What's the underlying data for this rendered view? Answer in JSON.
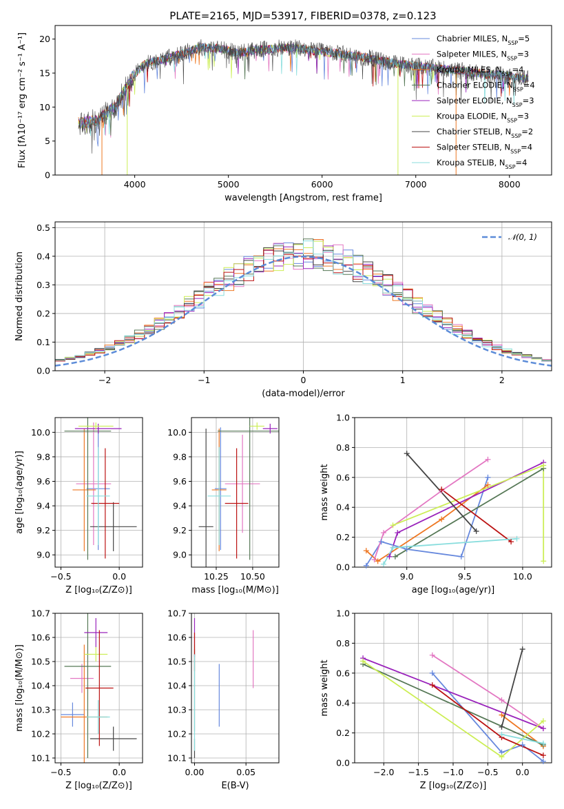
{
  "figure": {
    "title": "PLATE=2165, MJD=53917, FIBERID=0378, z=0.123",
    "colors": [
      "#6688dd",
      "#e377c2",
      "#ee7722",
      "#557755",
      "#9922bb",
      "#ccee55",
      "#444444",
      "#bb1111",
      "#88dddd"
    ]
  },
  "chart_data": [
    {
      "id": "spectrum",
      "type": "line",
      "title": "PLATE=2165, MJD=53917, FIBERID=0378, z=0.123",
      "xlabel": "wavelength [Angstrom, rest frame]",
      "ylabel": "Flux [fλ10⁻¹⁷ erg cm⁻² s⁻¹ A⁻¹]",
      "xlim": [
        3150,
        8450
      ],
      "ylim": [
        0,
        22
      ],
      "xticks": [
        4000,
        5000,
        6000,
        7000,
        8000
      ],
      "yticks": [
        0,
        5,
        10,
        15,
        20
      ],
      "grid": false,
      "legend_position": "top-right",
      "continuum": {
        "x": [
          3400,
          3600,
          3800,
          3950,
          4100,
          4300,
          4500,
          4700,
          4900,
          5100,
          5300,
          5500,
          5700,
          5900,
          6100,
          6300,
          6500,
          6700,
          6900,
          7100,
          7300,
          7500,
          7700,
          7900,
          8200
        ],
        "y": [
          7.6,
          8.0,
          10.2,
          14.0,
          16.3,
          17.0,
          17.8,
          18.8,
          18.6,
          18.0,
          18.4,
          18.6,
          18.7,
          18.3,
          18.0,
          17.6,
          17.2,
          16.6,
          16.2,
          15.9,
          15.6,
          15.3,
          14.9,
          14.7,
          14.2
        ]
      },
      "series": [
        {
          "name": "Chabrier MILES, N_SSP=5"
        },
        {
          "name": "Salpeter MILES, N_SSP=3"
        },
        {
          "name": "Kroupa MILES, N_SSP=4"
        },
        {
          "name": "Chabrier ELODIE, N_SSP=4"
        },
        {
          "name": "Salpeter ELODIE, N_SSP=3"
        },
        {
          "name": "Kroupa ELODIE, N_SSP=3"
        },
        {
          "name": "Chabrier STELIB, N_SSP=2"
        },
        {
          "name": "Salpeter STELIB, N_SSP=4"
        },
        {
          "name": "Kroupa STELIB, N_SSP=4"
        }
      ]
    },
    {
      "id": "residuals",
      "type": "line",
      "xlabel": "(data-model)/error",
      "ylabel": "Normed distribution",
      "xlim": [
        -2.5,
        2.5
      ],
      "ylim": [
        0,
        0.52
      ],
      "xticks": [
        -2,
        -1,
        0,
        1,
        2
      ],
      "yticks": [
        0.0,
        0.1,
        0.2,
        0.3,
        0.4,
        0.5
      ],
      "grid": true,
      "legend_position": "top-right",
      "legend": "𝒩(0, 1)",
      "gaussian": {
        "mean": 0,
        "sigma": 1
      },
      "bin_width": 0.1
    },
    {
      "id": "age_vs_Z",
      "type": "scatter",
      "xlabel": "Z [log₁₀(Z/Z⊙)]",
      "ylabel": "age  [log₁₀(age/yr)]",
      "xlim": [
        -0.55,
        0.2
      ],
      "ylim": [
        8.9,
        10.12
      ],
      "xticks": [
        -0.5,
        0.0
      ],
      "yticks": [
        9.0,
        9.2,
        9.4,
        9.6,
        9.8,
        10.0
      ],
      "grid": true,
      "points": [
        {
          "x": -0.18,
          "y": 9.54,
          "xerr": 0.1,
          "yerr": 0.5
        },
        {
          "x": -0.22,
          "y": 9.58,
          "xerr": 0.15,
          "yerr": 0.5
        },
        {
          "x": -0.3,
          "y": 9.53,
          "xerr": 0.1,
          "yerr": 0.5
        },
        {
          "x": -0.27,
          "y": 10.01,
          "xerr": 0.2,
          "yerr": 1.05
        },
        {
          "x": -0.18,
          "y": 10.03,
          "xerr": 0.2,
          "yerr": 0.04
        },
        {
          "x": -0.2,
          "y": 10.05,
          "xerr": 0.15,
          "yerr": 0.03
        },
        {
          "x": -0.05,
          "y": 9.23,
          "xerr": 0.2,
          "yerr": 0.2
        },
        {
          "x": -0.12,
          "y": 9.42,
          "xerr": 0.12,
          "yerr": 0.45
        },
        {
          "x": -0.18,
          "y": 9.48,
          "xerr": 0.1,
          "yerr": 0.4
        }
      ]
    },
    {
      "id": "age_vs_mass",
      "type": "scatter",
      "xlabel": "mass [log₁₀(M/M⊙)]",
      "ylabel": "",
      "xlim": [
        10.08,
        10.68
      ],
      "ylim": [
        8.9,
        10.12
      ],
      "xticks": [
        10.25,
        10.5
      ],
      "yticks": [
        9.0,
        9.2,
        9.4,
        9.6,
        9.8,
        10.0
      ],
      "grid": true,
      "points": [
        {
          "x": 10.28,
          "y": 9.54,
          "xerr": 0.04,
          "yerr": 0.5
        },
        {
          "x": 10.43,
          "y": 9.58,
          "xerr": 0.12,
          "yerr": 0.4
        },
        {
          "x": 10.27,
          "y": 9.53,
          "xerr": 0.05,
          "yerr": 0.5
        },
        {
          "x": 10.48,
          "y": 10.01,
          "xerr": 0.22,
          "yerr": 1.05
        },
        {
          "x": 10.62,
          "y": 10.03,
          "xerr": 0.05,
          "yerr": 0.04
        },
        {
          "x": 10.53,
          "y": 10.05,
          "xerr": 0.05,
          "yerr": 0.03
        },
        {
          "x": 10.18,
          "y": 9.23,
          "xerr": 0.05,
          "yerr": 0.8
        },
        {
          "x": 10.39,
          "y": 9.42,
          "xerr": 0.08,
          "yerr": 0.45
        },
        {
          "x": 10.27,
          "y": 9.48,
          "xerr": 0.08,
          "yerr": 0.4
        }
      ]
    },
    {
      "id": "weight_vs_age",
      "type": "line",
      "xlabel": "age  [log₁₀(age/yr)]",
      "ylabel": "mass weight",
      "xlim": [
        8.55,
        10.25
      ],
      "ylim": [
        0,
        1.0
      ],
      "xticks": [
        9.0,
        9.5,
        10.0
      ],
      "yticks": [
        0.0,
        0.2,
        0.4,
        0.6,
        0.8,
        1.0
      ],
      "grid": true,
      "series": [
        {
          "x": [
            8.65,
            8.78,
            9.0,
            9.47,
            9.7
          ],
          "y": [
            0.01,
            0.17,
            0.12,
            0.07,
            0.6
          ]
        },
        {
          "x": [
            8.72,
            8.8,
            9.3,
            9.7
          ],
          "y": [
            0.05,
            0.23,
            0.51,
            0.72
          ]
        },
        {
          "x": [
            8.65,
            8.75,
            9.3,
            9.7
          ],
          "y": [
            0.11,
            0.04,
            0.32,
            0.55
          ]
        },
        {
          "x": [
            8.9,
            10.18
          ],
          "y": [
            0.07,
            0.66
          ]
        },
        {
          "x": [
            8.85,
            8.92,
            10.18
          ],
          "y": [
            0.07,
            0.23,
            0.7
          ]
        },
        {
          "x": [
            8.88,
            10.18,
            10.18
          ],
          "y": [
            0.28,
            0.68,
            0.04
          ]
        },
        {
          "x": [
            9.0,
            9.6
          ],
          "y": [
            0.76,
            0.24
          ]
        },
        {
          "x": [
            9.3,
            9.9
          ],
          "y": [
            0.52,
            0.17
          ]
        },
        {
          "x": [
            8.8,
            8.88,
            9.95
          ],
          "y": [
            0.02,
            0.13,
            0.19
          ]
        }
      ]
    },
    {
      "id": "mass_vs_Z",
      "type": "scatter",
      "xlabel": "Z [log₁₀(Z/Z⊙)]",
      "ylabel": "mass [log₁₀(M/M⊙)]",
      "xlim": [
        -0.55,
        0.2
      ],
      "ylim": [
        10.08,
        10.7
      ],
      "xticks": [
        -0.5,
        0.0
      ],
      "yticks": [
        10.1,
        10.2,
        10.3,
        10.4,
        10.5,
        10.6,
        10.7
      ],
      "grid": true,
      "points": [
        {
          "x": -0.4,
          "y": 10.28,
          "xerr": 0.1,
          "yerr": 0.05
        },
        {
          "x": -0.32,
          "y": 10.43,
          "xerr": 0.1,
          "yerr": 0.06
        },
        {
          "x": -0.3,
          "y": 10.27,
          "xerr": 0.2,
          "yerr": 0.3
        },
        {
          "x": -0.27,
          "y": 10.48,
          "xerr": 0.2,
          "yerr": 0.38
        },
        {
          "x": -0.2,
          "y": 10.62,
          "xerr": 0.1,
          "yerr": 0.06
        },
        {
          "x": -0.2,
          "y": 10.53,
          "xerr": 0.1,
          "yerr": 0.03
        },
        {
          "x": -0.05,
          "y": 10.18,
          "xerr": 0.2,
          "yerr": 0.05
        },
        {
          "x": -0.17,
          "y": 10.39,
          "xerr": 0.12,
          "yerr": 0.24
        },
        {
          "x": -0.18,
          "y": 10.27,
          "xerr": 0.1,
          "yerr": 0.07
        }
      ]
    },
    {
      "id": "mass_vs_EBV",
      "type": "scatter",
      "xlabel": "E(B-V)",
      "ylabel": "",
      "xlim": [
        -0.003,
        0.082
      ],
      "ylim": [
        10.08,
        10.7
      ],
      "xticks": [
        0.0,
        0.05
      ],
      "yticks": [
        10.1,
        10.2,
        10.3,
        10.4,
        10.5,
        10.6,
        10.7
      ],
      "grid": true,
      "points": [
        {
          "x": 0.024,
          "y": 10.36,
          "yerr": 0.13
        },
        {
          "x": 0.057,
          "y": 10.51,
          "yerr": 0.12
        },
        {
          "x": 0.0825,
          "y": 10.39,
          "yerr": 0.12
        },
        {
          "x": 0.0,
          "y": 10.38,
          "yerr": 0.17
        },
        {
          "x": 0.0,
          "y": 10.6,
          "yerr": 0.08
        },
        {
          "x": 0.0,
          "y": 10.55,
          "yerr": 0.02
        },
        {
          "x": 0.0,
          "y": 10.14,
          "yerr": 0.04
        },
        {
          "x": 0.0,
          "y": 10.54,
          "yerr": 0.08
        },
        {
          "x": 0.0,
          "y": 10.33,
          "yerr": 0.2
        }
      ]
    },
    {
      "id": "weight_vs_Z",
      "type": "line",
      "xlabel": "Z [log₁₀(Z/Z⊙)]",
      "ylabel": "mass weight",
      "xlim": [
        -2.42,
        0.42
      ],
      "ylim": [
        0,
        1.0
      ],
      "xticks": [
        -2.0,
        -1.5,
        -1.0,
        -0.5,
        0.0
      ],
      "yticks": [
        0.0,
        0.2,
        0.4,
        0.6,
        0.8,
        1.0
      ],
      "grid": true,
      "series": [
        {
          "x": [
            -1.3,
            -0.3,
            0.0,
            0.3
          ],
          "y": [
            0.6,
            0.07,
            0.12,
            0.01
          ]
        },
        {
          "x": [
            -1.3,
            -0.3,
            0.3
          ],
          "y": [
            0.72,
            0.42,
            0.23
          ]
        },
        {
          "x": [
            -0.3,
            0.3
          ],
          "y": [
            0.32,
            0.11
          ]
        },
        {
          "x": [
            -2.3,
            0.3
          ],
          "y": [
            0.66,
            0.12
          ]
        },
        {
          "x": [
            -2.3,
            0.3
          ],
          "y": [
            0.7,
            0.23
          ]
        },
        {
          "x": [
            -2.3,
            -0.3,
            0.3
          ],
          "y": [
            0.68,
            0.04,
            0.28
          ]
        },
        {
          "x": [
            -0.3,
            0.0
          ],
          "y": [
            0.24,
            0.76
          ]
        },
        {
          "x": [
            -1.3,
            -0.3,
            0.3
          ],
          "y": [
            0.52,
            0.17,
            0.05
          ]
        },
        {
          "x": [
            -0.3,
            0.3
          ],
          "y": [
            0.19,
            0.13
          ]
        }
      ]
    }
  ]
}
